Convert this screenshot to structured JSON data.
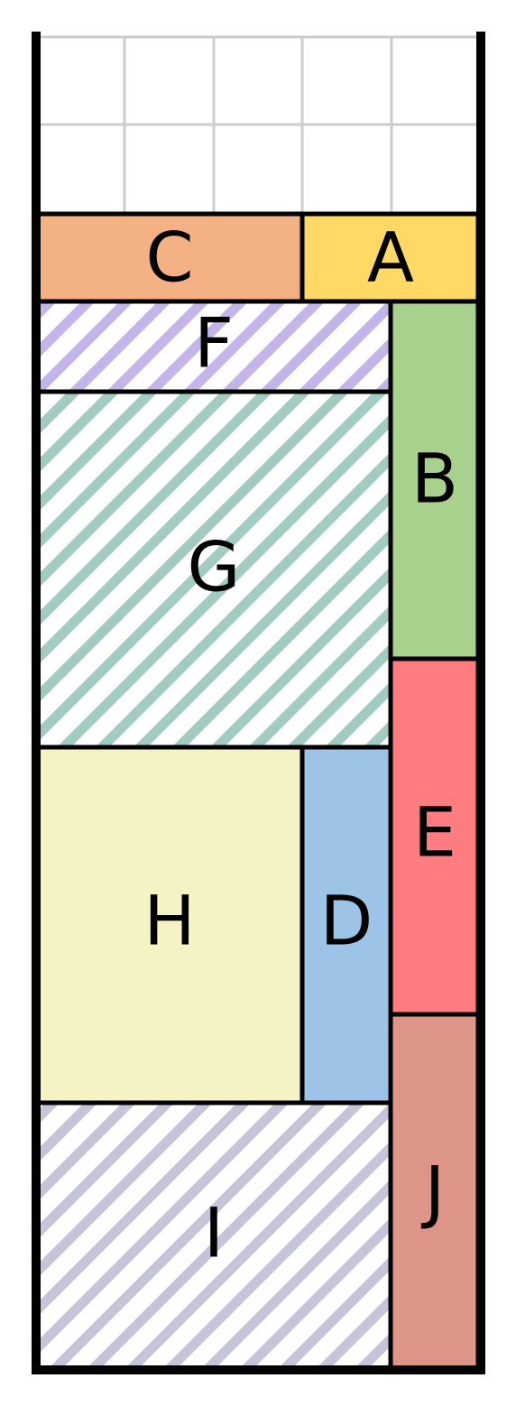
{
  "colors": {
    "background": "#ffffff",
    "grid": "#cccccc",
    "outline": "#000000",
    "C": "#f4b183",
    "A": "#ffd966",
    "F": "#c5b4ea",
    "B": "#a9d18e",
    "G": "#a2cbc1",
    "E": "#ff7c80",
    "H": "#f5f3c4",
    "D": "#9dc3e6",
    "J": "#dc9586",
    "I": "#c5c4d9"
  },
  "pieces": {
    "C": {
      "label": "C",
      "fill": "solid"
    },
    "A": {
      "label": "A",
      "fill": "solid"
    },
    "F": {
      "label": "F",
      "fill": "hatched"
    },
    "B": {
      "label": "B",
      "fill": "solid"
    },
    "G": {
      "label": "G",
      "fill": "hatched"
    },
    "E": {
      "label": "E",
      "fill": "solid"
    },
    "H": {
      "label": "H",
      "fill": "solid"
    },
    "D": {
      "label": "D",
      "fill": "solid"
    },
    "J": {
      "label": "J",
      "fill": "solid"
    },
    "I": {
      "label": "I",
      "fill": "hatched"
    }
  }
}
